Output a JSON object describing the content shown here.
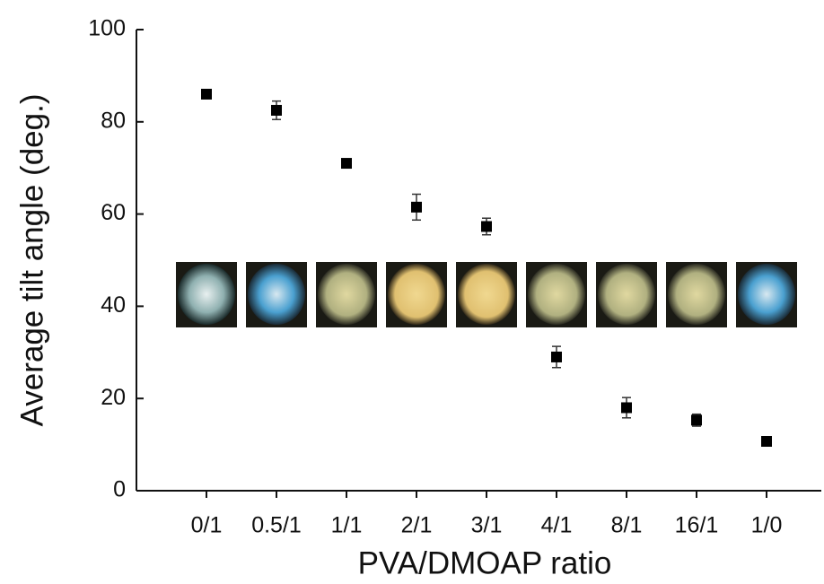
{
  "chart_data": {
    "type": "scatter",
    "x_label": "PVA/DMOAP ratio",
    "y_label": "Average tilt angle (deg.)",
    "categories": [
      "0/1",
      "0.5/1",
      "1/1",
      "2/1",
      "3/1",
      "4/1",
      "8/1",
      "16/1",
      "1/0"
    ],
    "series": [
      {
        "color": "#000000",
        "values": [
          86,
          82.5,
          71,
          61.5,
          57.3,
          29,
          18,
          15.3,
          10.7
        ],
        "errors": [
          null,
          2,
          null,
          2.8,
          1.8,
          2.3,
          2.2,
          1.3,
          null
        ]
      }
    ],
    "ylim": [
      0,
      100
    ],
    "yticks": [
      0,
      20,
      40,
      60,
      80,
      100
    ]
  }
}
